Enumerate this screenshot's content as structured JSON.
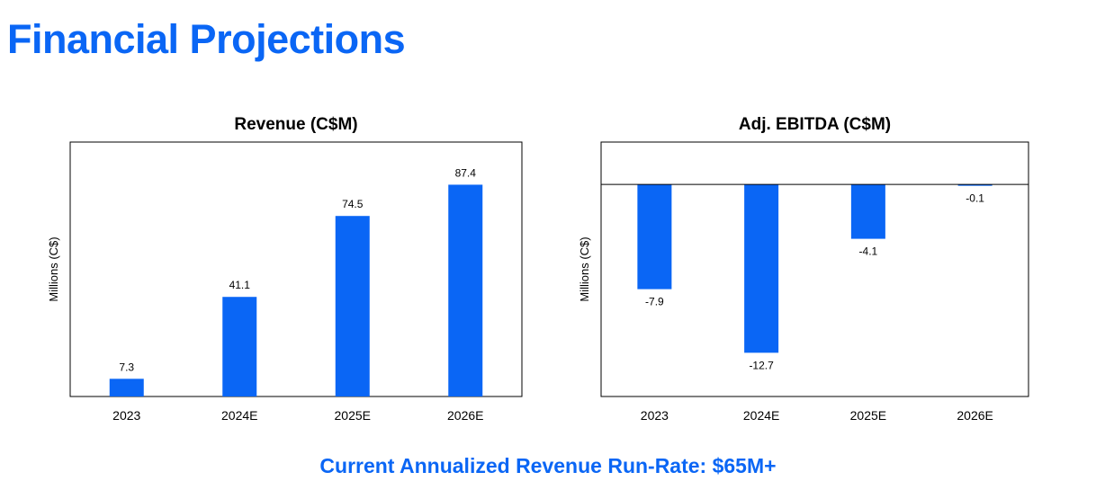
{
  "page_title": "Financial Projections",
  "footer_note": "Current Annualized Revenue Run-Rate: $65M+",
  "colors": {
    "accent": "#0A66F5",
    "bar": "#0A66F5",
    "axis": "#000000"
  },
  "chart_data": [
    {
      "type": "bar",
      "title": "Revenue (C$M)",
      "ylabel": "Millions (C$)",
      "xlabel": "",
      "categories": [
        "2023",
        "2024E",
        "2025E",
        "2026E"
      ],
      "values": [
        7.3,
        41.1,
        74.5,
        87.4
      ],
      "data_labels": [
        "7.3",
        "41.1",
        "74.5",
        "87.4"
      ],
      "ylim": [
        0,
        105
      ],
      "grid": false
    },
    {
      "type": "bar",
      "title": "Adj. EBITDA (C$M)",
      "ylabel": "Millions (C$)",
      "xlabel": "",
      "categories": [
        "2023",
        "2024E",
        "2025E",
        "2026E"
      ],
      "values": [
        -7.9,
        -12.7,
        -4.1,
        -0.1
      ],
      "data_labels": [
        "-7.9",
        "-12.7",
        "-4.1",
        "-0.1"
      ],
      "ylim": [
        -16.0,
        3.2
      ],
      "grid": false,
      "zero_line": true
    }
  ]
}
